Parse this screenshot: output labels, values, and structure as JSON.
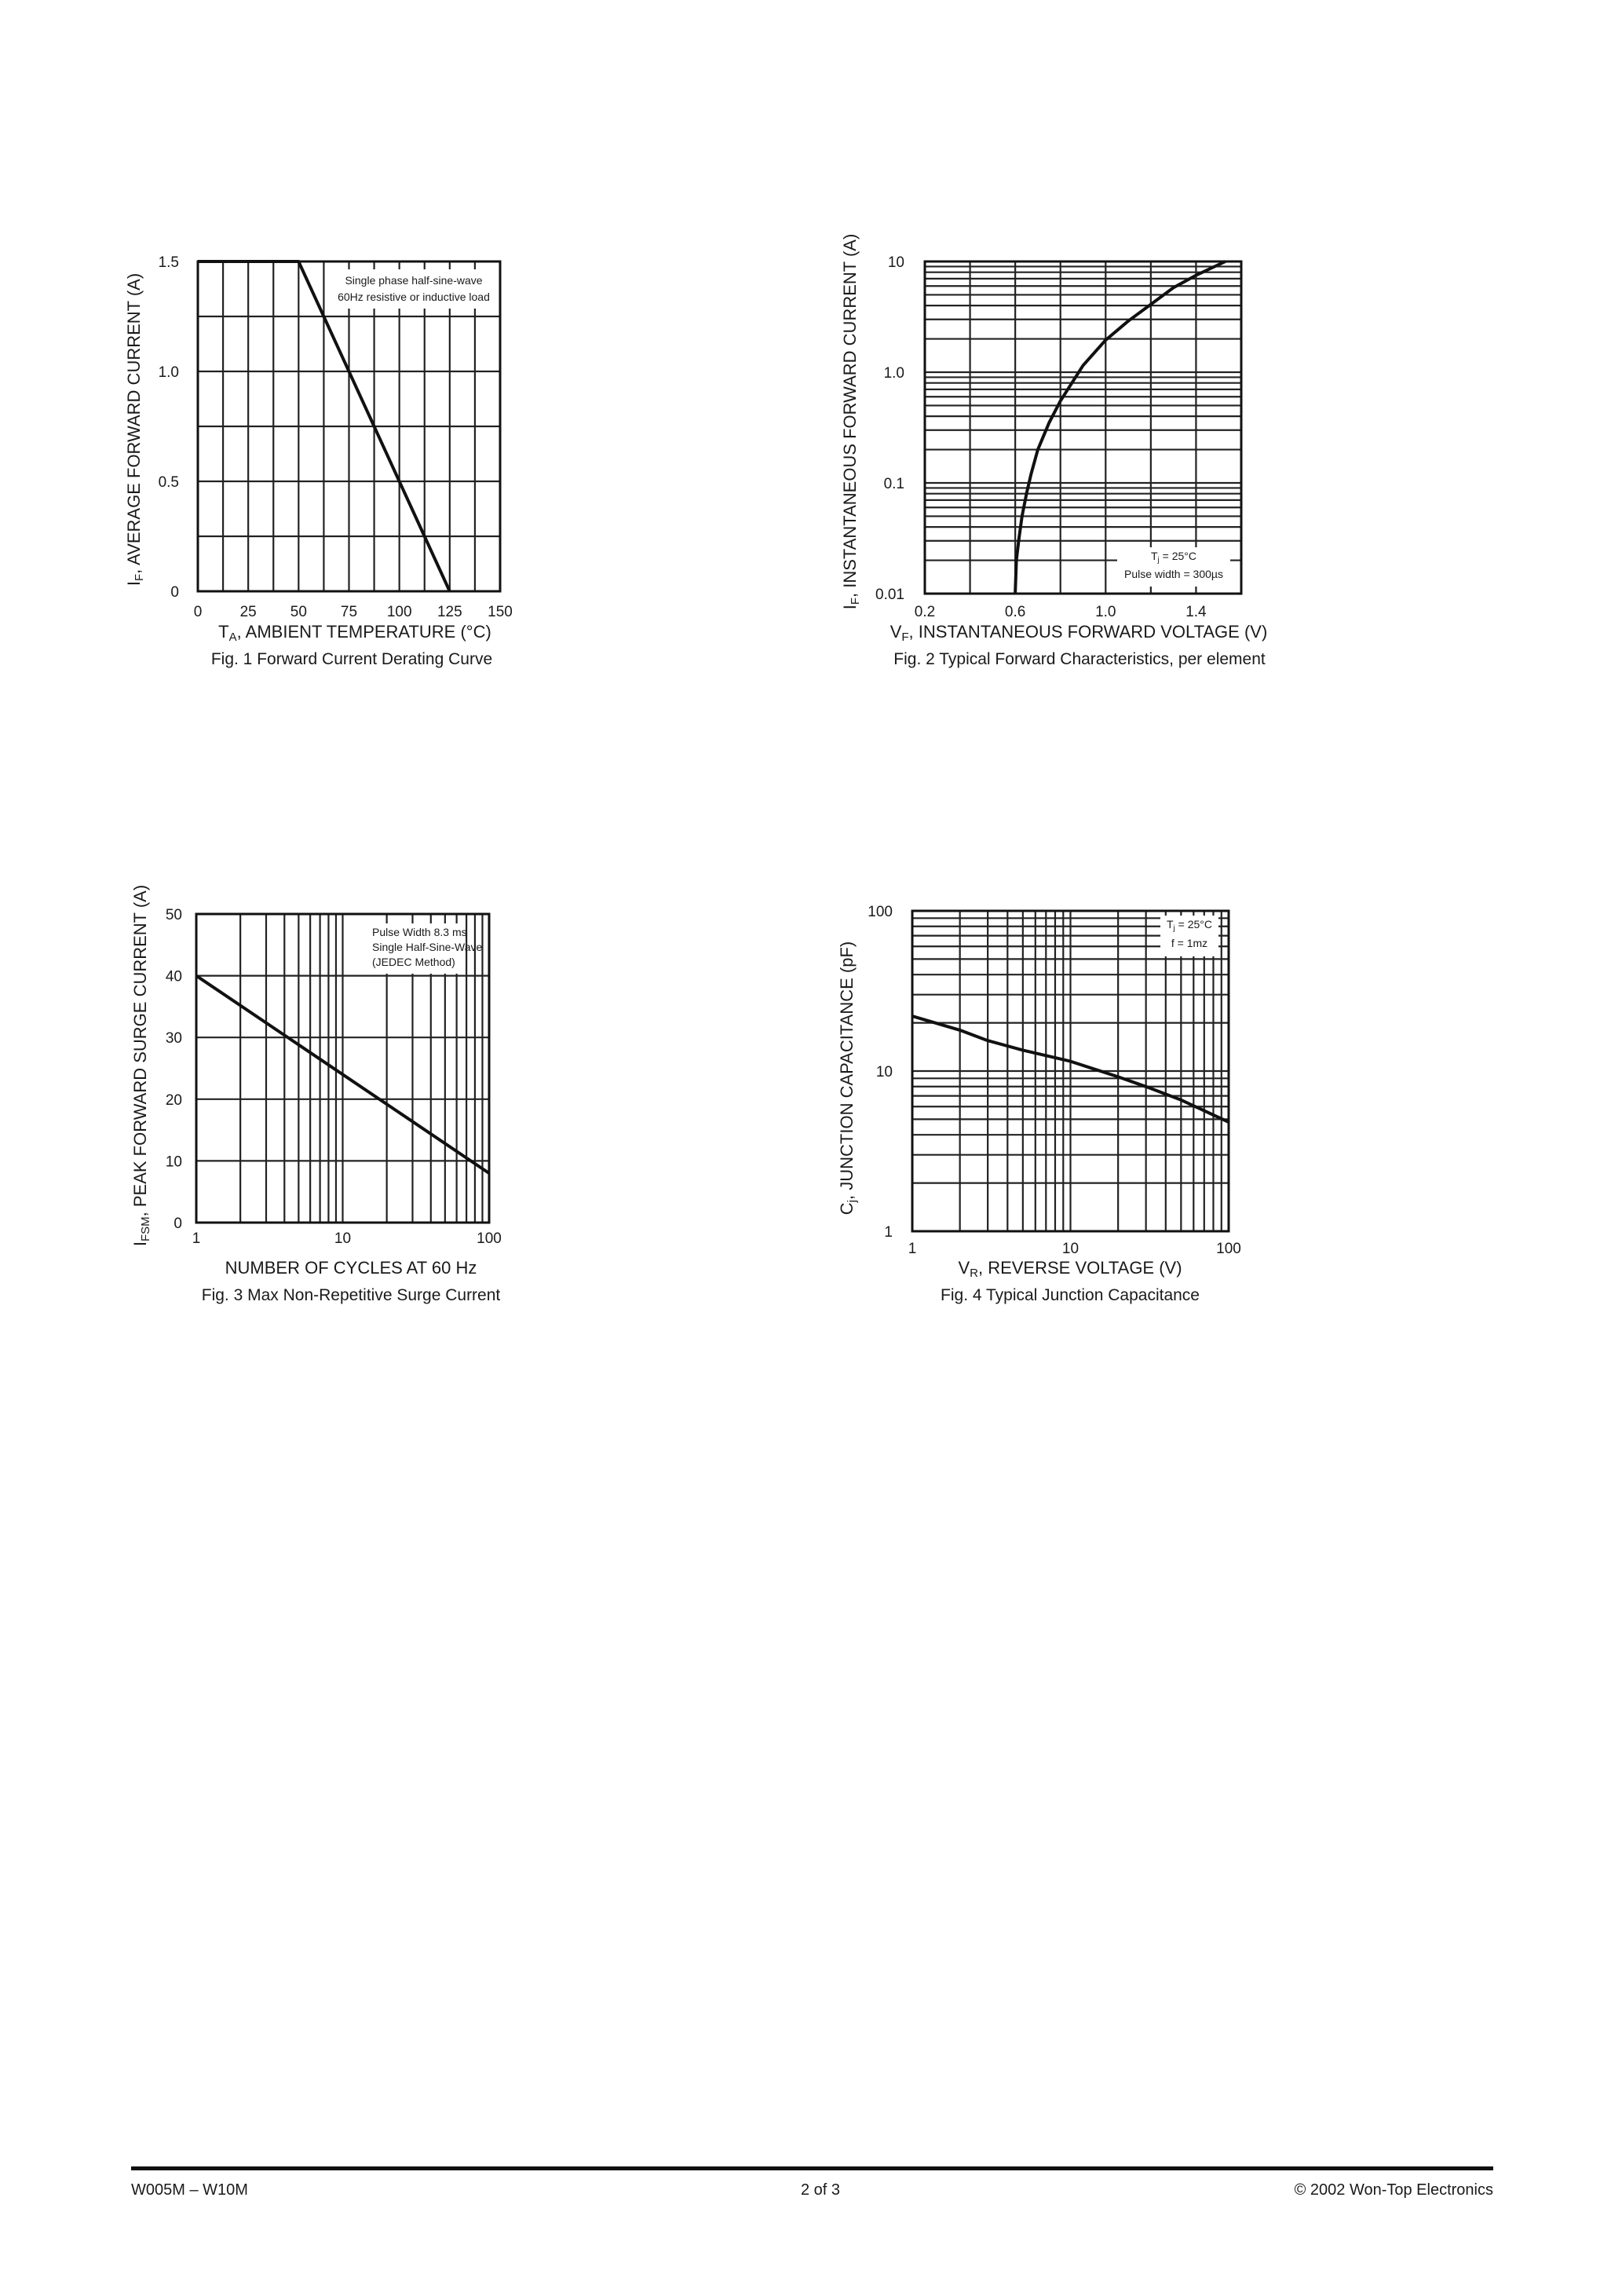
{
  "footer": {
    "left": "W005M – W10M",
    "center": "2  of  3",
    "right": "© 2002 Won-Top Electronics"
  },
  "chart_data": [
    {
      "id": "fig1",
      "type": "line",
      "title": "Fig. 1  Forward Current Derating Curve",
      "xlabel": {
        "main": "T",
        "sub": "A",
        "rest": ", AMBIENT TEMPERATURE (°C)"
      },
      "ylabel": {
        "main": "I",
        "sub": "F",
        "rest": ", AVERAGE FORWARD CURRENT (A)"
      },
      "xscale": "linear",
      "yscale": "linear",
      "xlim": [
        0,
        150
      ],
      "ylim": [
        0,
        1.5
      ],
      "xticks": [
        0,
        25,
        50,
        75,
        100,
        125,
        150
      ],
      "xtick_labels": [
        "0",
        "25",
        "50",
        "75",
        "100",
        "125",
        "150"
      ],
      "yticks": [
        0,
        0.5,
        1.0,
        1.5
      ],
      "ytick_labels": [
        "0",
        "0.5",
        "1.0",
        "1.5"
      ],
      "xgrid_step": 12.5,
      "ygrid_step": 0.25,
      "grid": true,
      "annotation": [
        {
          "rest": "Single phase half-sine-wave"
        },
        {
          "rest": "60Hz resistive or inductive load"
        }
      ],
      "x": [
        0,
        50,
        125
      ],
      "y": [
        1.5,
        1.5,
        0
      ]
    },
    {
      "id": "fig2",
      "type": "line",
      "title": "Fig. 2  Typical Forward Characteristics, per element",
      "xlabel": {
        "main": "V",
        "sub": "F",
        "rest": ", INSTANTANEOUS FORWARD VOLTAGE (V)"
      },
      "ylabel": {
        "main": "I",
        "sub": "F",
        "rest": ", INSTANTANEOUS FORWARD CURRENT (A)"
      },
      "xscale": "linear",
      "yscale": "log",
      "xlim": [
        0.2,
        1.6
      ],
      "ylim": [
        0.01,
        10
      ],
      "xticks": [
        0.2,
        0.6,
        1.0,
        1.4
      ],
      "xtick_labels": [
        "0.2",
        "0.6",
        "1.0",
        "1.4"
      ],
      "yticks": [
        0.01,
        0.1,
        1,
        10
      ],
      "ytick_labels": [
        "0.01",
        "0.1",
        "1.0",
        "10"
      ],
      "xgrid_step": 0.2,
      "grid": true,
      "annotation": [
        {
          "main": "T",
          "sub": "j",
          "rest": " = 25°C"
        },
        {
          "rest": "Pulse width = 300µs"
        }
      ],
      "x": [
        0.6,
        0.605,
        0.615,
        0.63,
        0.65,
        0.67,
        0.7,
        0.75,
        0.8,
        0.9,
        1.0,
        1.1,
        1.2,
        1.3,
        1.4,
        1.53
      ],
      "y": [
        0.01,
        0.02,
        0.03,
        0.05,
        0.08,
        0.12,
        0.2,
        0.35,
        0.55,
        1.15,
        1.95,
        2.9,
        4.1,
        5.8,
        7.5,
        10
      ]
    },
    {
      "id": "fig3",
      "type": "line",
      "title": "Fig. 3  Max Non-Repetitive Surge Current",
      "xlabel": {
        "rest": "NUMBER OF CYCLES AT 60 Hz"
      },
      "ylabel": {
        "main": "I",
        "sub": "FSM",
        "rest": ", PEAK FORWARD SURGE CURRENT (A)"
      },
      "xscale": "log",
      "yscale": "linear",
      "xlim": [
        1,
        100
      ],
      "ylim": [
        0,
        50
      ],
      "xticks": [
        1,
        10,
        100
      ],
      "xtick_labels": [
        "1",
        "10",
        "100"
      ],
      "yticks": [
        0,
        10,
        20,
        30,
        40,
        50
      ],
      "ytick_labels": [
        "0",
        "10",
        "20",
        "30",
        "40",
        "50"
      ],
      "ygrid_step": 10,
      "grid": true,
      "annotation": [
        {
          "rest": "Pulse Width 8.3 ms"
        },
        {
          "rest": "Single Half-Sine-Wave"
        },
        {
          "rest": "(JEDEC Method)"
        }
      ],
      "x": [
        1,
        100
      ],
      "y": [
        40,
        8
      ]
    },
    {
      "id": "fig4",
      "type": "line",
      "title": "Fig. 4  Typical Junction Capacitance",
      "xlabel": {
        "main": "V",
        "sub": "R",
        "rest": ", REVERSE VOLTAGE (V)"
      },
      "ylabel": {
        "main": "C",
        "sub": "j",
        "rest": ", JUNCTION CAPACITANCE (pF)"
      },
      "xscale": "log",
      "yscale": "log",
      "xlim": [
        1,
        100
      ],
      "ylim": [
        1,
        100
      ],
      "xticks": [
        1,
        10,
        100
      ],
      "xtick_labels": [
        "1",
        "10",
        "100"
      ],
      "yticks": [
        1,
        10,
        100
      ],
      "ytick_labels": [
        "1",
        "10",
        "100"
      ],
      "grid": true,
      "annotation": [
        {
          "main": "T",
          "sub": "j",
          "rest": " = 25°C"
        },
        {
          "rest": "f = 1mz"
        }
      ],
      "x": [
        1,
        2,
        3,
        5,
        10,
        20,
        30,
        50,
        100
      ],
      "y": [
        22,
        18,
        15.5,
        13.5,
        11.5,
        9.2,
        8.0,
        6.6,
        4.8
      ]
    }
  ]
}
